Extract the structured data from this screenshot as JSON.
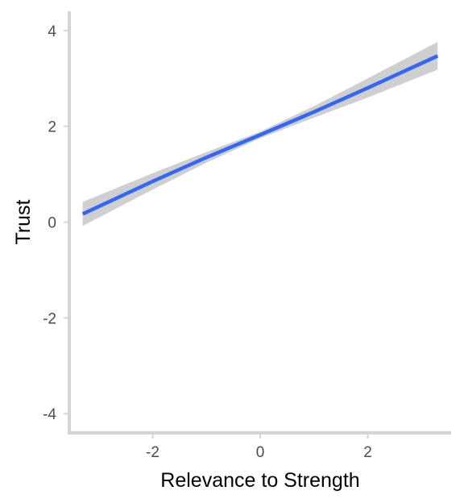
{
  "chart_data": {
    "type": "line",
    "title": "",
    "xlabel": "Relevance to Strength",
    "ylabel": "Trust",
    "xlim": [
      -3.55,
      3.55
    ],
    "ylim": [
      -4.4,
      4.4
    ],
    "x_ticks": [
      -2,
      0,
      2
    ],
    "y_ticks": [
      -4,
      -2,
      0,
      2,
      4
    ],
    "x_tick_labels": [
      "-2",
      "0",
      "2"
    ],
    "y_tick_labels": [
      "-4",
      "-2",
      "0",
      "2",
      "4"
    ],
    "grid": false,
    "legend": "none",
    "series": [
      {
        "x": [
          -3.3,
          -2.0,
          -1.0,
          0.0,
          1.0,
          2.0,
          3.3
        ],
        "y": [
          0.17,
          0.85,
          1.35,
          1.82,
          2.3,
          2.8,
          3.47
        ],
        "ci_low": [
          -0.08,
          0.68,
          1.24,
          1.75,
          2.18,
          2.6,
          3.18
        ],
        "ci_high": [
          0.42,
          1.02,
          1.46,
          1.89,
          2.42,
          3.0,
          3.76
        ],
        "color": "#3366ff",
        "ci_color": "#bfbfbf"
      }
    ],
    "axis_color": "#d4d4d4",
    "tick_label_color": "#4d4d4d"
  }
}
